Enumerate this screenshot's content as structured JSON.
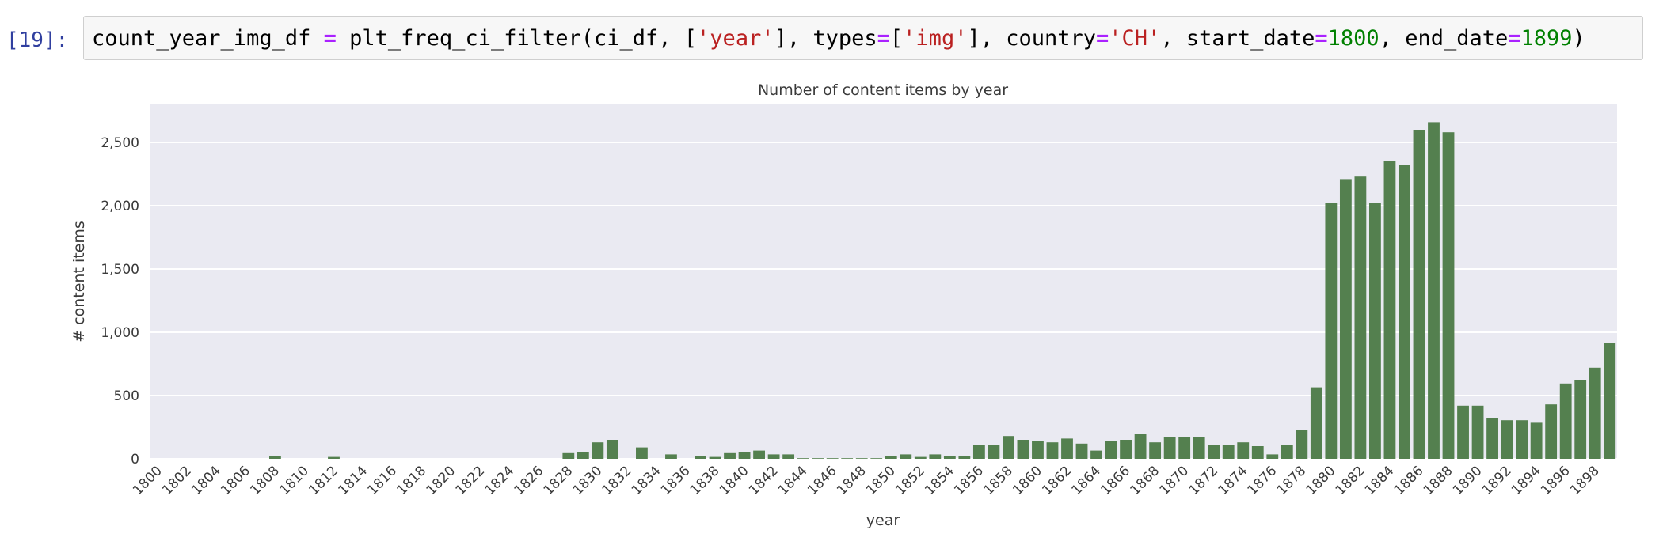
{
  "cell": {
    "prompt": "[19]:",
    "code": {
      "var": "count_year_img_df",
      "eq": "=",
      "call": "plt_freq_ci_filter(ci_df, [",
      "s1": "'year'",
      "p1": "], types",
      "eq2": "=",
      "p2": "[",
      "s2": "'img'",
      "p3": "], country",
      "eq3": "=",
      "s3": "'CH'",
      "p4": ", start_date",
      "eq4": "=",
      "n1": "1800",
      "p5": ", end_date",
      "eq5": "=",
      "n2": "1899",
      "p6": ")"
    }
  },
  "colors": {
    "bar": "#54804f",
    "plot_bg": "#eaeaf2",
    "grid": "#ffffff"
  },
  "chart_data": {
    "type": "bar",
    "title": "Number of content items by year",
    "xlabel": "year",
    "ylabel": "# content items",
    "ylim": [
      0,
      2800
    ],
    "yticks": [
      0,
      500,
      1000,
      1500,
      2000,
      2500
    ],
    "ytick_labels": [
      "0",
      "500",
      "1,000",
      "1,500",
      "2,000",
      "2,500"
    ],
    "grid": true,
    "categories": [
      "1800",
      "1801",
      "1802",
      "1803",
      "1804",
      "1805",
      "1806",
      "1807",
      "1808",
      "1809",
      "1810",
      "1811",
      "1812",
      "1813",
      "1814",
      "1815",
      "1816",
      "1817",
      "1818",
      "1819",
      "1820",
      "1821",
      "1822",
      "1823",
      "1824",
      "1825",
      "1826",
      "1827",
      "1828",
      "1829",
      "1830",
      "1831",
      "1832",
      "1833",
      "1834",
      "1835",
      "1836",
      "1837",
      "1838",
      "1839",
      "1840",
      "1841",
      "1842",
      "1843",
      "1844",
      "1845",
      "1846",
      "1847",
      "1848",
      "1849",
      "1850",
      "1851",
      "1852",
      "1853",
      "1854",
      "1855",
      "1856",
      "1857",
      "1858",
      "1859",
      "1860",
      "1861",
      "1862",
      "1863",
      "1864",
      "1865",
      "1866",
      "1867",
      "1868",
      "1869",
      "1870",
      "1871",
      "1872",
      "1873",
      "1874",
      "1875",
      "1876",
      "1877",
      "1878",
      "1879",
      "1880",
      "1881",
      "1882",
      "1883",
      "1884",
      "1885",
      "1886",
      "1887",
      "1888",
      "1889",
      "1890",
      "1891",
      "1892",
      "1893",
      "1894",
      "1895",
      "1896",
      "1897",
      "1898",
      "1899"
    ],
    "xtick_labels": [
      "1800",
      "1802",
      "1804",
      "1806",
      "1808",
      "1810",
      "1812",
      "1814",
      "1816",
      "1818",
      "1820",
      "1822",
      "1824",
      "1826",
      "1828",
      "1830",
      "1832",
      "1834",
      "1836",
      "1838",
      "1840",
      "1842",
      "1844",
      "1846",
      "1848",
      "1850",
      "1852",
      "1854",
      "1856",
      "1858",
      "1860",
      "1862",
      "1864",
      "1866",
      "1868",
      "1870",
      "1872",
      "1874",
      "1876",
      "1878",
      "1880",
      "1882",
      "1884",
      "1886",
      "1888",
      "1890",
      "1892",
      "1894",
      "1896",
      "1898"
    ],
    "values": [
      0,
      0,
      0,
      0,
      0,
      0,
      0,
      0,
      25,
      0,
      0,
      0,
      15,
      0,
      0,
      0,
      0,
      0,
      0,
      0,
      0,
      0,
      0,
      0,
      0,
      0,
      0,
      0,
      45,
      55,
      130,
      150,
      0,
      90,
      0,
      35,
      0,
      25,
      15,
      45,
      55,
      65,
      35,
      35,
      5,
      5,
      5,
      5,
      5,
      5,
      25,
      35,
      15,
      35,
      25,
      25,
      110,
      110,
      180,
      150,
      140,
      130,
      160,
      120,
      65,
      140,
      150,
      200,
      130,
      170,
      170,
      170,
      110,
      110,
      130,
      100,
      35,
      110,
      230,
      565,
      2020,
      2210,
      2230,
      2020,
      2350,
      2320,
      2600,
      2660,
      2580,
      420,
      420,
      320,
      305,
      305,
      285,
      430,
      595,
      625,
      720,
      915
    ]
  }
}
